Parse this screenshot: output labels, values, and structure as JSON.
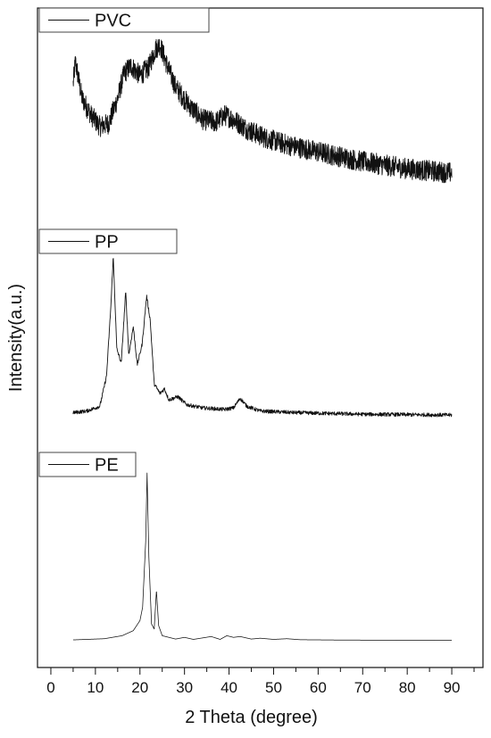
{
  "chart_data": {
    "type": "line",
    "xlabel": "2 Theta (degree)",
    "ylabel": "Intensity(a.u.)",
    "xlim": [
      -3,
      97
    ],
    "x_ticks": [
      "0",
      "10",
      "20",
      "30",
      "40",
      "50",
      "60",
      "70",
      "80",
      "90"
    ],
    "y_ticks": "none",
    "grid": false,
    "layout": "three vertically stacked panels sharing one x axis",
    "line_color": "#111111",
    "series": [
      {
        "name": "PVC",
        "noise": "high",
        "points": [
          [
            5,
            0.72
          ],
          [
            5.5,
            0.88
          ],
          [
            7,
            0.62
          ],
          [
            9,
            0.5
          ],
          [
            11,
            0.42
          ],
          [
            13,
            0.44
          ],
          [
            15,
            0.62
          ],
          [
            16.5,
            0.8
          ],
          [
            18,
            0.85
          ],
          [
            20,
            0.78
          ],
          [
            22,
            0.84
          ],
          [
            23.5,
            0.97
          ],
          [
            24.5,
            1.0
          ],
          [
            26,
            0.86
          ],
          [
            28,
            0.7
          ],
          [
            31,
            0.57
          ],
          [
            34,
            0.47
          ],
          [
            37,
            0.45
          ],
          [
            39,
            0.5
          ],
          [
            41,
            0.47
          ],
          [
            44,
            0.4
          ],
          [
            48,
            0.34
          ],
          [
            53,
            0.29
          ],
          [
            60,
            0.24
          ],
          [
            70,
            0.17
          ],
          [
            80,
            0.12
          ],
          [
            90,
            0.09
          ]
        ]
      },
      {
        "name": "PP",
        "noise": "low",
        "points": [
          [
            5,
            0.02
          ],
          [
            8,
            0.03
          ],
          [
            11,
            0.06
          ],
          [
            12.5,
            0.25
          ],
          [
            13.5,
            0.7
          ],
          [
            14,
            1.0
          ],
          [
            14.8,
            0.42
          ],
          [
            15.8,
            0.33
          ],
          [
            16.8,
            0.78
          ],
          [
            17.5,
            0.38
          ],
          [
            18.5,
            0.56
          ],
          [
            19.4,
            0.32
          ],
          [
            20.5,
            0.45
          ],
          [
            21.5,
            0.75
          ],
          [
            22.3,
            0.6
          ],
          [
            23.2,
            0.2
          ],
          [
            24.5,
            0.14
          ],
          [
            25.5,
            0.17
          ],
          [
            26.5,
            0.1
          ],
          [
            28.5,
            0.12
          ],
          [
            30.5,
            0.07
          ],
          [
            34,
            0.05
          ],
          [
            39,
            0.04
          ],
          [
            41,
            0.05
          ],
          [
            42.5,
            0.11
          ],
          [
            44,
            0.06
          ],
          [
            47,
            0.03
          ],
          [
            55,
            0.02
          ],
          [
            70,
            0.01
          ],
          [
            90,
            0.005
          ]
        ]
      },
      {
        "name": "PE",
        "noise": "none",
        "points": [
          [
            5,
            0.005
          ],
          [
            12,
            0.012
          ],
          [
            16,
            0.03
          ],
          [
            18.5,
            0.06
          ],
          [
            20,
            0.12
          ],
          [
            20.6,
            0.2
          ],
          [
            21.3,
            0.6
          ],
          [
            21.6,
            1.0
          ],
          [
            22.0,
            0.5
          ],
          [
            22.6,
            0.1
          ],
          [
            23.2,
            0.07
          ],
          [
            23.7,
            0.3
          ],
          [
            24.2,
            0.09
          ],
          [
            25,
            0.03
          ],
          [
            28,
            0.01
          ],
          [
            30,
            0.02
          ],
          [
            32,
            0.008
          ],
          [
            36,
            0.025
          ],
          [
            38,
            0.008
          ],
          [
            39.5,
            0.03
          ],
          [
            41,
            0.02
          ],
          [
            42.5,
            0.025
          ],
          [
            45,
            0.01
          ],
          [
            47,
            0.015
          ],
          [
            50,
            0.008
          ],
          [
            53,
            0.012
          ],
          [
            56,
            0.006
          ],
          [
            65,
            0.004
          ],
          [
            90,
            0.002
          ]
        ]
      }
    ]
  }
}
